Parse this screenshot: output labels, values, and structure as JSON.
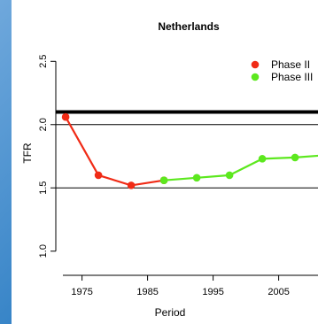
{
  "colors": {
    "phase2": "#f02b16",
    "phase3": "#5ce81e",
    "reference": "#000000",
    "background_blue": "#2f7fc4"
  },
  "chart_data": {
    "type": "line",
    "title": "Netherlands",
    "xlabel": "Period",
    "ylabel": "TFR",
    "xlim": [
      1971,
      2011
    ],
    "ylim": [
      0.9,
      2.6
    ],
    "xticks": [
      1975,
      1985,
      1995,
      2005
    ],
    "xtick_labels": [
      "1975",
      "1985",
      "1995",
      "2005"
    ],
    "yticks": [
      1.0,
      1.5,
      2.0,
      2.5
    ],
    "ytick_labels": [
      "1.0",
      "1.5",
      "2.0",
      "2.5"
    ],
    "hlines": [
      {
        "y": 2.1,
        "style": "thick"
      },
      {
        "y": 2.0,
        "style": "thin"
      },
      {
        "y": 1.5,
        "style": "thin"
      }
    ],
    "legend_position": "top-right",
    "series": [
      {
        "name": "Phase II",
        "color": "#f02b16",
        "x": [
          1972.5,
          1977.5,
          1982.5,
          1987.5
        ],
        "y": [
          2.06,
          1.6,
          1.52,
          1.56
        ]
      },
      {
        "name": "Phase III",
        "color": "#5ce81e",
        "x": [
          1987.5,
          1992.5,
          1997.5,
          2002.5,
          2007.5,
          2012.5
        ],
        "y": [
          1.56,
          1.58,
          1.6,
          1.73,
          1.74,
          1.76
        ]
      }
    ]
  }
}
